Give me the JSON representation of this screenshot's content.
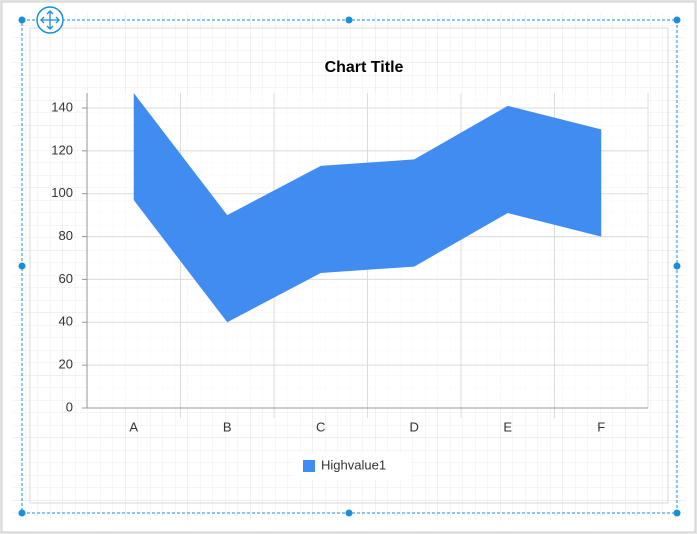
{
  "chart_data": {
    "type": "range_area",
    "title": "Chart Title",
    "categories": [
      "A",
      "B",
      "C",
      "D",
      "E",
      "F"
    ],
    "series": [
      {
        "name": "Highvalue1",
        "color": "#418cf0",
        "high": [
          147,
          90,
          113,
          116,
          141,
          130
        ],
        "low": [
          97,
          40,
          63,
          66,
          91,
          80
        ]
      }
    ],
    "ylim": [
      0,
      147
    ],
    "yticks": [
      0,
      20,
      40,
      60,
      80,
      100,
      120,
      140
    ],
    "grid": true,
    "legend": "bottom"
  }
}
